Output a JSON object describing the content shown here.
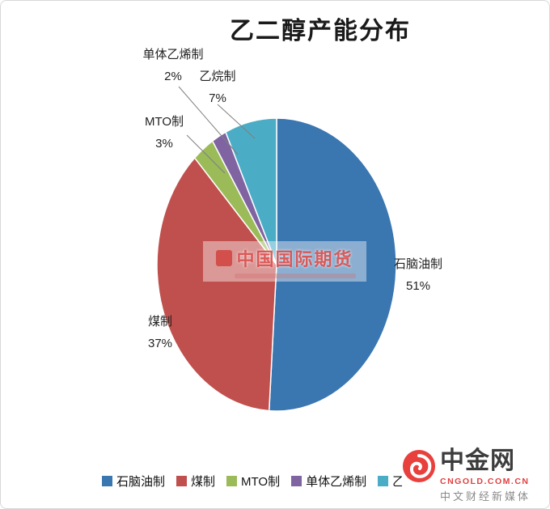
{
  "chart_data": {
    "type": "pie",
    "title": "乙二醇产能分布",
    "categories": [
      "石脑油制",
      "煤制",
      "MTO制",
      "单体乙烯制",
      "乙烷制"
    ],
    "values": [
      51,
      37,
      3,
      2,
      7
    ],
    "pct_labels": [
      "51%",
      "37%",
      "3%",
      "2%",
      "7%"
    ],
    "unit": "%",
    "colors": [
      "#3a76b0",
      "#c0504d",
      "#9bbb59",
      "#8064a2",
      "#4bacc6"
    ],
    "start_angle_deg": -90,
    "direction": "clockwise",
    "legend_position": "bottom",
    "grid": false
  },
  "watermark": {
    "text": "中国国际期货"
  },
  "branding": {
    "name": "中金网",
    "domain": "CNGOLD.COM.CN",
    "tagline": "中文财经新媒体"
  }
}
